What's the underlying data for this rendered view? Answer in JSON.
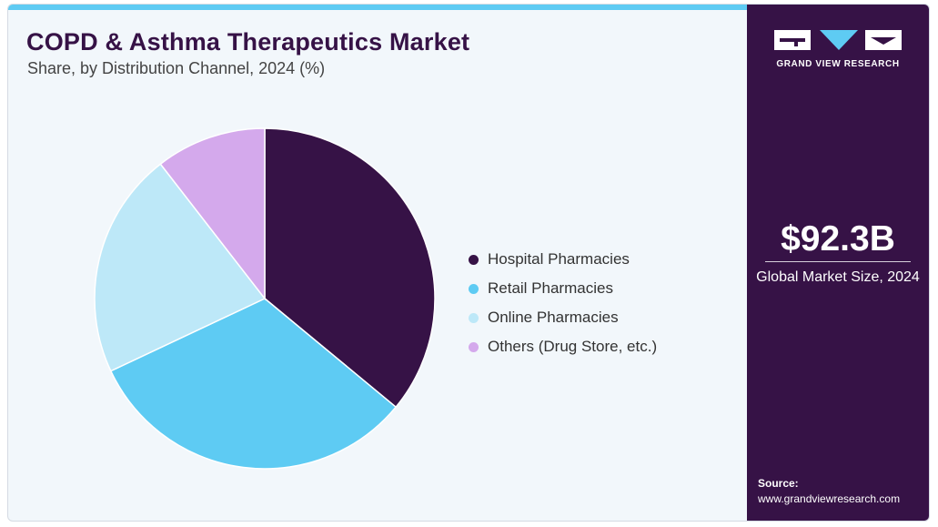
{
  "header": {
    "title": "COPD & Asthma Therapeutics Market",
    "subtitle": "Share, by Distribution Channel, 2024 (%)"
  },
  "brand": {
    "logo_text": "GRAND VIEW RESEARCH",
    "logo_icon": "gvr-logo-icon"
  },
  "sidebar": {
    "market_value": "$92.3B",
    "market_label": "Global Market Size, 2024",
    "source_label": "Source:",
    "source_url": "www.grandviewresearch.com"
  },
  "colors": {
    "accent_bar": "#5ecbf3",
    "sidebar_bg": "#361246"
  },
  "chart_data": {
    "type": "pie",
    "title": "COPD & Asthma Therapeutics Market",
    "subtitle": "Share, by Distribution Channel, 2024 (%)",
    "start_angle_deg": 0,
    "direction": "clockwise",
    "legend_position": "right",
    "slices": [
      {
        "label": "Hospital Pharmacies",
        "value": 36,
        "color": "#361246"
      },
      {
        "label": "Retail Pharmacies",
        "value": 32,
        "color": "#5ecbf3"
      },
      {
        "label": "Online Pharmacies",
        "value": 21.5,
        "color": "#bde8f8"
      },
      {
        "label": "Others (Drug Store, etc.)",
        "value": 10.5,
        "color": "#d4a9ec"
      }
    ]
  }
}
